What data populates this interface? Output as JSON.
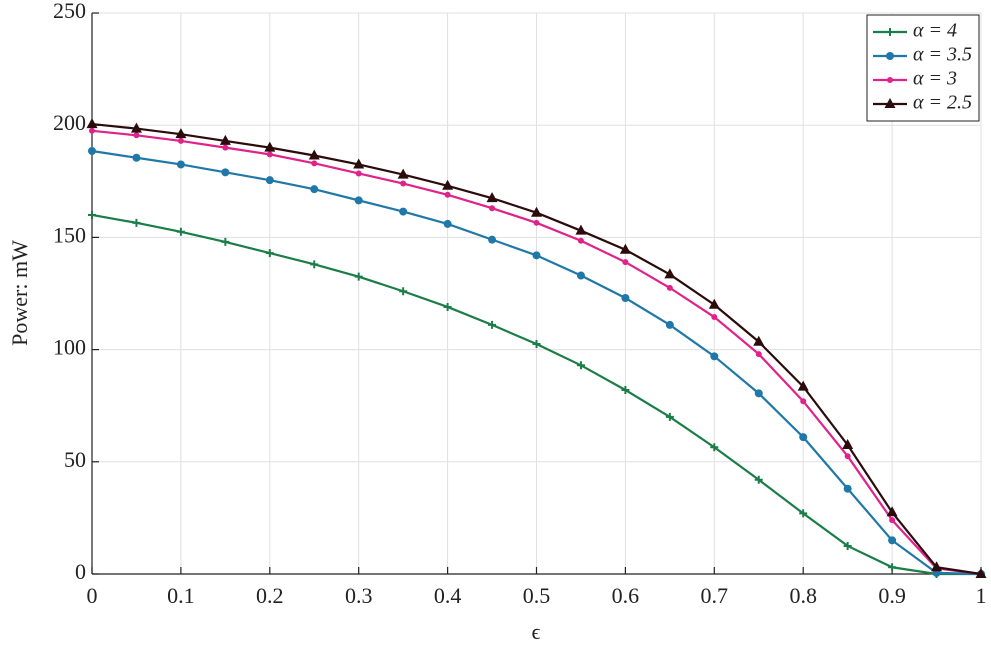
{
  "chart_data": {
    "type": "line",
    "xlabel": "ϵ",
    "ylabel": "Power: mW",
    "x": [
      0,
      0.05,
      0.1,
      0.15,
      0.2,
      0.25,
      0.3,
      0.35,
      0.4,
      0.45,
      0.5,
      0.55,
      0.6,
      0.65,
      0.7,
      0.75,
      0.8,
      0.85,
      0.9,
      0.95,
      1
    ],
    "xlim": [
      0,
      1
    ],
    "xticks": [
      0,
      0.1,
      0.2,
      0.3,
      0.4,
      0.5,
      0.6,
      0.7,
      0.8,
      0.9,
      1
    ],
    "ylim": [
      0,
      250
    ],
    "yticks": [
      0,
      50,
      100,
      150,
      200,
      250
    ],
    "grid": true,
    "legend": "upper right",
    "series": [
      {
        "name": "α = 4",
        "color": "#1b7d48",
        "marker": "plus",
        "values": [
          160,
          156.5,
          152.5,
          148,
          143,
          138,
          132.5,
          126,
          119,
          111,
          102.5,
          93,
          82,
          70,
          56.5,
          42,
          27,
          12.5,
          3,
          0,
          0
        ]
      },
      {
        "name": "α = 3.5",
        "color": "#1f78a8",
        "marker": "circle",
        "values": [
          188.5,
          185.5,
          182.5,
          179,
          175.5,
          171.5,
          166.5,
          161.5,
          156,
          149,
          142,
          133,
          123,
          111,
          97,
          80.5,
          61,
          38,
          15,
          0.5,
          0
        ]
      },
      {
        "name": "α = 3",
        "color": "#e0228a",
        "marker": "dot",
        "values": [
          197.5,
          195.5,
          193,
          190,
          187,
          183,
          178.5,
          174,
          169,
          163,
          156.5,
          148.5,
          139,
          127.5,
          114.5,
          98,
          77,
          52.5,
          24,
          2.5,
          0
        ]
      },
      {
        "name": "α = 2.5",
        "color": "#2b0b0b",
        "marker": "triangle",
        "values": [
          200.5,
          198.5,
          196,
          193,
          190,
          186.5,
          182.5,
          178,
          173,
          167.5,
          161,
          153,
          144.5,
          133.5,
          120,
          103.5,
          83.5,
          57.5,
          27.5,
          3,
          0
        ]
      }
    ]
  }
}
